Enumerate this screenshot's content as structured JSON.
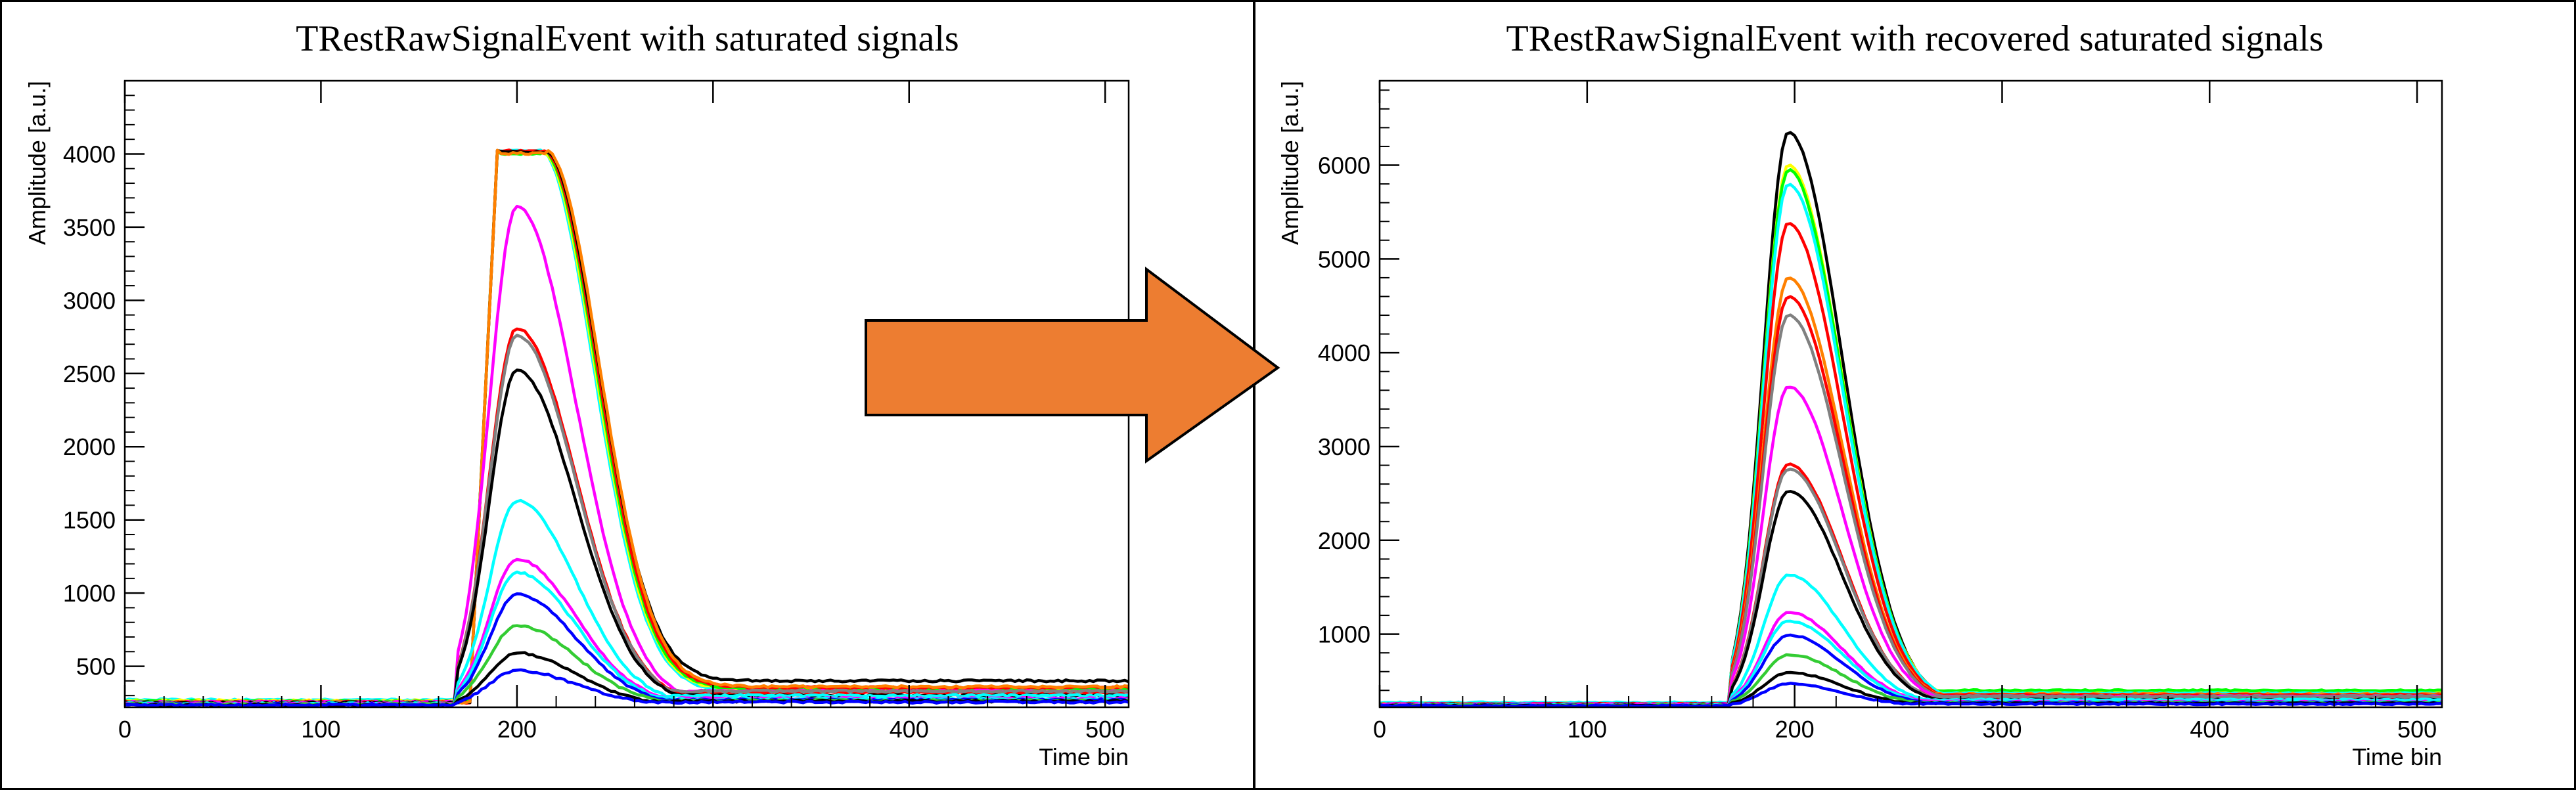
{
  "panels": [
    {
      "title": "TRestRawSignalEvent with saturated signals"
    },
    {
      "title": "TRestRawSignalEvent with recovered saturated signals"
    }
  ],
  "arrow": {
    "color": "#ED7D31",
    "icon": "right-arrow-icon"
  },
  "chart_data": [
    {
      "type": "line",
      "title": "TRestRawSignalEvent with saturated signals",
      "xlabel": "Time bin",
      "ylabel": "Amplitude [a.u.]",
      "xlim": [
        0,
        512
      ],
      "ylim": [
        220,
        4500
      ],
      "xticks": [
        0,
        100,
        200,
        300,
        400,
        500
      ],
      "yticks": [
        500,
        1000,
        1500,
        2000,
        2500,
        3000,
        3500,
        4000
      ],
      "grid": false,
      "saturated": true,
      "saturation_level": 4020,
      "signal_start_bin": 170,
      "peak_bin": 200,
      "series": [
        {
          "color": "#00ffff",
          "baseline": 270,
          "tail": 330,
          "peak": 4000
        },
        {
          "color": "#ffff00",
          "baseline": 265,
          "tail": 340,
          "peak": 4000
        },
        {
          "color": "#00ff00",
          "baseline": 260,
          "tail": 345,
          "peak": 4000
        },
        {
          "color": "#ff0000",
          "baseline": 255,
          "tail": 355,
          "peak": 4000
        },
        {
          "color": "#000000",
          "baseline": 250,
          "tail": 400,
          "peak": 4000
        },
        {
          "color": "#ff8000",
          "baseline": 255,
          "tail": 360,
          "peak": 4000
        },
        {
          "color": "#ff00ff",
          "baseline": 255,
          "tail": 330,
          "peak": 3640
        },
        {
          "color": "#ff0000",
          "baseline": 250,
          "tail": 320,
          "peak": 2810
        },
        {
          "color": "#808080",
          "baseline": 250,
          "tail": 330,
          "peak": 2760
        },
        {
          "color": "#000000",
          "baseline": 250,
          "tail": 300,
          "peak": 2520
        },
        {
          "color": "#00ffff",
          "baseline": 245,
          "tail": 300,
          "peak": 1630
        },
        {
          "color": "#ff00ff",
          "baseline": 245,
          "tail": 280,
          "peak": 1230
        },
        {
          "color": "#00ffff",
          "baseline": 240,
          "tail": 275,
          "peak": 1140
        },
        {
          "color": "#0000ff",
          "baseline": 240,
          "tail": 270,
          "peak": 990
        },
        {
          "color": "#33cc33",
          "baseline": 240,
          "tail": 265,
          "peak": 780
        },
        {
          "color": "#000000",
          "baseline": 235,
          "tail": 262,
          "peak": 590
        },
        {
          "color": "#0000ff",
          "baseline": 235,
          "tail": 255,
          "peak": 470
        }
      ]
    },
    {
      "type": "line",
      "title": "TRestRawSignalEvent with recovered saturated signals",
      "xlabel": "Time bin",
      "ylabel": "Amplitude [a.u.]",
      "xlim": [
        0,
        512
      ],
      "ylim": [
        220,
        6900
      ],
      "xticks": [
        0,
        100,
        200,
        300,
        400,
        500
      ],
      "yticks": [
        1000,
        2000,
        3000,
        4000,
        5000,
        6000
      ],
      "grid": false,
      "saturated": false,
      "signal_start_bin": 170,
      "peak_bin": 197,
      "series": [
        {
          "color": "#000000",
          "baseline": 250,
          "tail": 360,
          "peak": 6350
        },
        {
          "color": "#ffff00",
          "baseline": 265,
          "tail": 390,
          "peak": 6000
        },
        {
          "color": "#00ff00",
          "baseline": 260,
          "tail": 400,
          "peak": 5950
        },
        {
          "color": "#00ffff",
          "baseline": 270,
          "tail": 370,
          "peak": 5800
        },
        {
          "color": "#ff0000",
          "baseline": 255,
          "tail": 350,
          "peak": 5380
        },
        {
          "color": "#ff8000",
          "baseline": 255,
          "tail": 360,
          "peak": 4800
        },
        {
          "color": "#ff0000",
          "baseline": 255,
          "tail": 350,
          "peak": 4600
        },
        {
          "color": "#808080",
          "baseline": 250,
          "tail": 340,
          "peak": 4400
        },
        {
          "color": "#ff00ff",
          "baseline": 255,
          "tail": 330,
          "peak": 3640
        },
        {
          "color": "#ff0000",
          "baseline": 250,
          "tail": 320,
          "peak": 2810
        },
        {
          "color": "#808080",
          "baseline": 250,
          "tail": 330,
          "peak": 2760
        },
        {
          "color": "#000000",
          "baseline": 250,
          "tail": 300,
          "peak": 2520
        },
        {
          "color": "#00ffff",
          "baseline": 245,
          "tail": 300,
          "peak": 1630
        },
        {
          "color": "#ff00ff",
          "baseline": 245,
          "tail": 280,
          "peak": 1230
        },
        {
          "color": "#00ffff",
          "baseline": 240,
          "tail": 275,
          "peak": 1140
        },
        {
          "color": "#0000ff",
          "baseline": 240,
          "tail": 270,
          "peak": 990
        },
        {
          "color": "#33cc33",
          "baseline": 240,
          "tail": 265,
          "peak": 780
        },
        {
          "color": "#000000",
          "baseline": 235,
          "tail": 262,
          "peak": 590
        },
        {
          "color": "#0000ff",
          "baseline": 235,
          "tail": 255,
          "peak": 470
        }
      ]
    }
  ]
}
